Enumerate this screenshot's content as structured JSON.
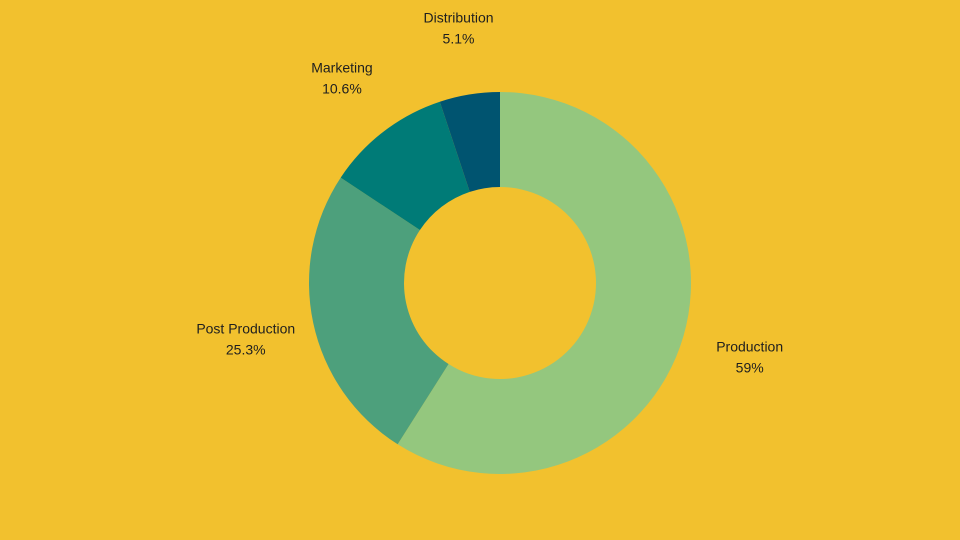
{
  "page": {
    "background": "#F2C12E"
  },
  "chart_data": {
    "type": "pie",
    "title": "",
    "donut": true,
    "start_angle_deg": 0,
    "direction": "clockwise",
    "categories": [
      "Production",
      "Post Production",
      "Marketing",
      "Distribution"
    ],
    "values": [
      59,
      25.3,
      10.6,
      5.1
    ],
    "value_labels": [
      "59%",
      "25.3%",
      "10.6%",
      "5.1%"
    ],
    "colors": [
      "#94C77E",
      "#4DA07C",
      "#007B77",
      "#005470"
    ],
    "label_position": "outside",
    "legend": "none"
  }
}
